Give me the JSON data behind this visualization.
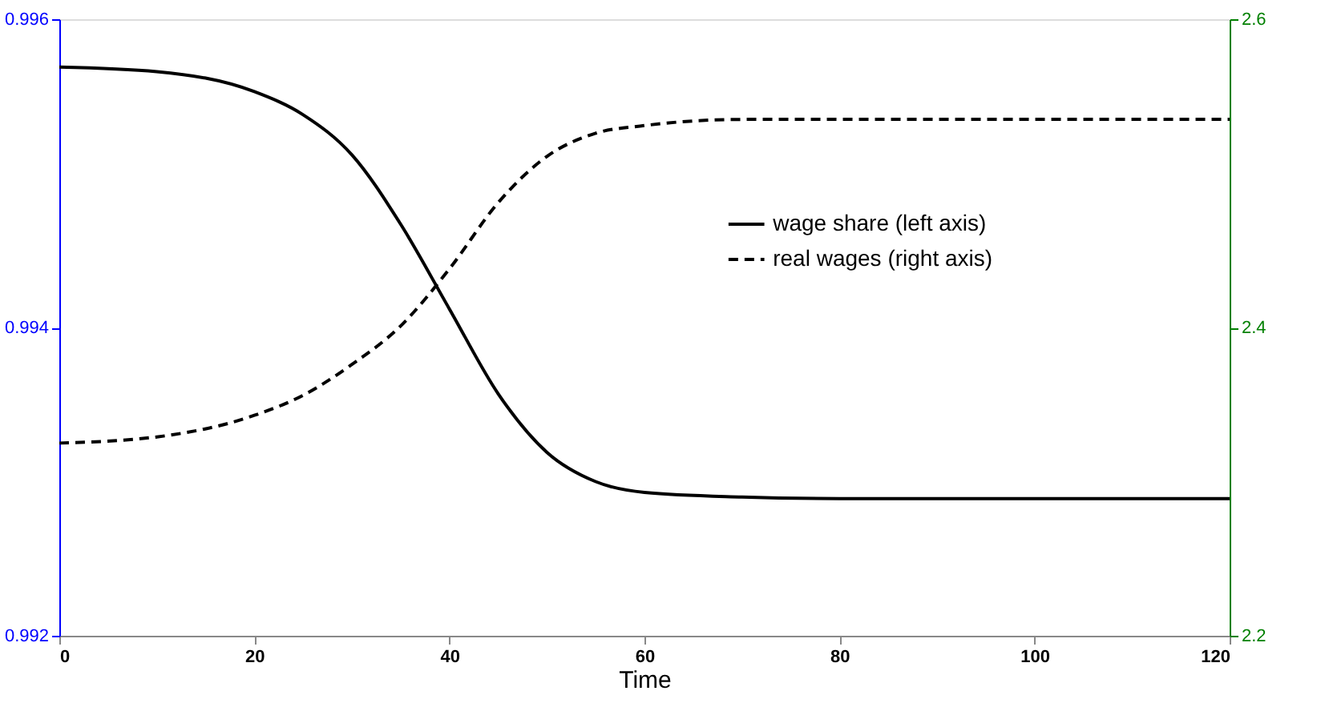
{
  "chart_data": {
    "type": "line",
    "xlabel": "Time",
    "x": [
      0,
      10,
      20,
      25,
      30,
      35,
      40,
      45,
      50,
      55,
      60,
      70,
      80,
      90,
      100,
      110,
      120
    ],
    "series": [
      {
        "name": "wage share (left axis)",
        "color": "#000000",
        "line_style": "solid",
        "values": [
          0.99569,
          0.99566,
          0.99553,
          0.99538,
          0.99512,
          0.99467,
          0.99412,
          0.99357,
          0.99319,
          0.993,
          0.99293,
          0.9929,
          0.99289,
          0.99289,
          0.99289,
          0.99289,
          0.99289
        ]
      },
      {
        "name": "real wages (right axis)",
        "color": "#000000",
        "line_style": "dashed",
        "axis": "y2",
        "values": [
          2.325,
          2.329,
          2.343,
          2.356,
          2.376,
          2.401,
          2.438,
          2.481,
          2.511,
          2.526,
          2.531,
          2.535,
          2.535,
          2.535,
          2.535,
          2.535,
          2.535
        ]
      }
    ],
    "xlim": [
      0,
      120
    ],
    "xticks": [
      0,
      20,
      40,
      60,
      80,
      100,
      120
    ],
    "ylim": [
      0.992,
      0.996
    ],
    "yticks": [
      0.992,
      0.994,
      0.996
    ],
    "y2lim": [
      2.2,
      2.6
    ],
    "y2ticks": [
      2.2,
      2.4,
      2.6
    ],
    "legend": "top right",
    "grid": false,
    "marker": "none"
  }
}
